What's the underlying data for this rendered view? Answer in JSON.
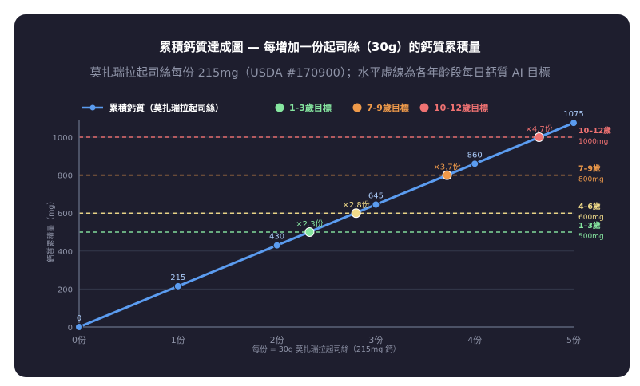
{
  "title": "累積鈣質達成圖 — 每增加一份起司絲（30g）的鈣質累積量",
  "subtitle": "莫扎瑞拉起司絲每份 215mg（USDA #170900）；水平虛線為各年齡段每日鈣質 AI 目標",
  "colors": {
    "background": "#1e1e2e",
    "series": "#5b9cf0",
    "grid": "#34394b",
    "axis": "#5c6478",
    "tick": "#8f94a8"
  },
  "legend": [
    {
      "label": "累積鈣質（莫扎瑞拉起司絲）",
      "color": "#5b9cf0",
      "kind": "line"
    },
    {
      "label": "1-3歲目標",
      "color": "#86e6a0",
      "kind": "dot"
    },
    {
      "label": "7-9歲目標",
      "color": "#ef9a4a",
      "kind": "dot"
    },
    {
      "label": "10-12歲目標",
      "color": "#f07272",
      "kind": "dot"
    }
  ],
  "chart_data": {
    "type": "line",
    "title": "累積鈣質達成圖 — 每增加一份起司絲（30g）的鈣質累積量",
    "xlabel": "每份 = 30g 莫扎瑞拉起司絲（215mg 鈣）",
    "ylabel": "鈣質累積量（mg）",
    "xlim": [
      0,
      5
    ],
    "ylim": [
      0,
      1100
    ],
    "x_ticks": [
      {
        "value": 0,
        "label": "0份"
      },
      {
        "value": 1,
        "label": "1份"
      },
      {
        "value": 2,
        "label": "2份"
      },
      {
        "value": 3,
        "label": "3份"
      },
      {
        "value": 4,
        "label": "4份"
      },
      {
        "value": 5,
        "label": "5份"
      }
    ],
    "y_ticks": [
      {
        "value": 0,
        "label": "0"
      },
      {
        "value": 200,
        "label": "200"
      },
      {
        "value": 400,
        "label": "400"
      },
      {
        "value": 600,
        "label": "600"
      },
      {
        "value": 800,
        "label": "800"
      },
      {
        "value": 1000,
        "label": "1000"
      }
    ],
    "series": [
      {
        "name": "累積鈣質（莫扎瑞拉起司絲）",
        "x": [
          0,
          1,
          2,
          3,
          4,
          5
        ],
        "y": [
          0,
          215,
          430,
          645,
          860,
          1075
        ],
        "labels": [
          "0",
          "215",
          "430",
          "645",
          "860",
          "1075"
        ]
      }
    ],
    "targets": [
      {
        "value": 500,
        "color": "#86e6a0",
        "label_line1": "1–3歲",
        "label_line2": "500mg",
        "point_x": 2.33,
        "point_label": "×2.3份"
      },
      {
        "value": 600,
        "color": "#f2dc8a",
        "label_line1": "4–6歲",
        "label_line2": "600mg",
        "point_x": 2.8,
        "point_label": "×2.8份"
      },
      {
        "value": 800,
        "color": "#ef9a4a",
        "label_line1": "7–9歲",
        "label_line2": "800mg",
        "point_x": 3.72,
        "point_label": "×3.7份"
      },
      {
        "value": 1000,
        "color": "#f07272",
        "label_line1": "10–12歲",
        "label_line2": "1000mg",
        "point_x": 4.65,
        "point_label": "×4.7份"
      }
    ],
    "grid": true,
    "legend_position": "top-left"
  }
}
